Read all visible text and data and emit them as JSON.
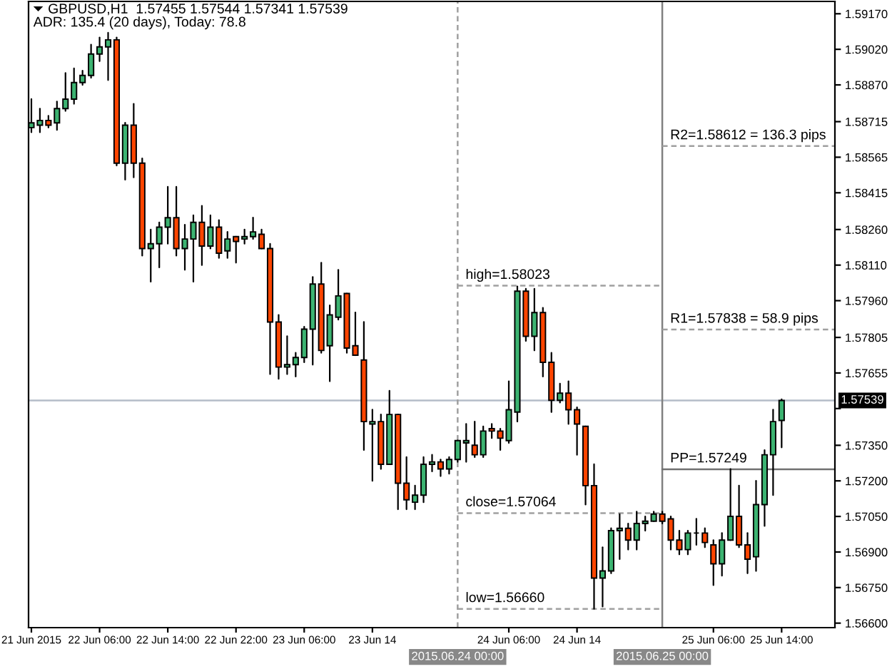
{
  "chart_data": {
    "type": "candlestick",
    "title": "GBPUSD,H1  1.57455 1.57544 1.57341 1.57539",
    "subtitle": "ADR: 135.4 (20 days), Today: 78.8",
    "x": [
      "2015-06-21T22:00",
      "2015-06-21T23:00",
      "2015-06-22T00:00",
      "2015-06-22T01:00",
      "2015-06-22T02:00",
      "2015-06-22T03:00",
      "2015-06-22T04:00",
      "2015-06-22T05:00",
      "2015-06-22T06:00",
      "2015-06-22T07:00",
      "2015-06-22T08:00",
      "2015-06-22T09:00",
      "2015-06-22T10:00",
      "2015-06-22T11:00",
      "2015-06-22T12:00",
      "2015-06-22T13:00",
      "2015-06-22T14:00",
      "2015-06-22T15:00",
      "2015-06-22T16:00",
      "2015-06-22T17:00",
      "2015-06-22T18:00",
      "2015-06-22T19:00",
      "2015-06-22T20:00",
      "2015-06-22T21:00",
      "2015-06-22T22:00",
      "2015-06-22T23:00",
      "2015-06-23T00:00",
      "2015-06-23T01:00",
      "2015-06-23T02:00",
      "2015-06-23T03:00",
      "2015-06-23T04:00",
      "2015-06-23T05:00",
      "2015-06-23T06:00",
      "2015-06-23T07:00",
      "2015-06-23T08:00",
      "2015-06-23T09:00",
      "2015-06-23T10:00",
      "2015-06-23T11:00",
      "2015-06-23T12:00",
      "2015-06-23T13:00",
      "2015-06-23T14:00",
      "2015-06-23T15:00",
      "2015-06-23T16:00",
      "2015-06-23T17:00",
      "2015-06-23T18:00",
      "2015-06-23T19:00",
      "2015-06-23T20:00",
      "2015-06-23T21:00",
      "2015-06-23T22:00",
      "2015-06-23T23:00",
      "2015-06-24T00:00",
      "2015-06-24T01:00",
      "2015-06-24T02:00",
      "2015-06-24T03:00",
      "2015-06-24T04:00",
      "2015-06-24T05:00",
      "2015-06-24T06:00",
      "2015-06-24T07:00",
      "2015-06-24T08:00",
      "2015-06-24T09:00",
      "2015-06-24T10:00",
      "2015-06-24T11:00",
      "2015-06-24T12:00",
      "2015-06-24T13:00",
      "2015-06-24T14:00",
      "2015-06-24T15:00",
      "2015-06-24T16:00",
      "2015-06-24T17:00",
      "2015-06-24T18:00",
      "2015-06-24T19:00",
      "2015-06-24T20:00",
      "2015-06-24T21:00",
      "2015-06-24T22:00",
      "2015-06-24T23:00",
      "2015-06-25T00:00",
      "2015-06-25T01:00",
      "2015-06-25T02:00",
      "2015-06-25T03:00",
      "2015-06-25T04:00",
      "2015-06-25T05:00",
      "2015-06-25T06:00",
      "2015-06-25T07:00",
      "2015-06-25T08:00",
      "2015-06-25T09:00",
      "2015-06-25T10:00",
      "2015-06-25T11:00",
      "2015-06-25T12:00",
      "2015-06-25T13:00",
      "2015-06-25T14:00"
    ],
    "ohlc": [
      [
        1.5869,
        1.5881,
        1.5867,
        1.5871
      ],
      [
        1.587,
        1.5877,
        1.5867,
        1.5872
      ],
      [
        1.5872,
        1.5874,
        1.5869,
        1.587
      ],
      [
        1.5871,
        1.588,
        1.5868,
        1.5877
      ],
      [
        1.5877,
        1.5892,
        1.5876,
        1.5881
      ],
      [
        1.5881,
        1.5894,
        1.5879,
        1.5888
      ],
      [
        1.5888,
        1.5893,
        1.5887,
        1.5891
      ],
      [
        1.5891,
        1.5904,
        1.589,
        1.59
      ],
      [
        1.59,
        1.5907,
        1.5897,
        1.5903
      ],
      [
        1.5903,
        1.5909,
        1.5889,
        1.5906
      ],
      [
        1.5906,
        1.5907,
        1.5853,
        1.5854
      ],
      [
        1.5854,
        1.5871,
        1.5847,
        1.587
      ],
      [
        1.587,
        1.5879,
        1.5848,
        1.5854
      ],
      [
        1.5854,
        1.5856,
        1.5815,
        1.5818
      ],
      [
        1.5818,
        1.5826,
        1.5804,
        1.582
      ],
      [
        1.582,
        1.5829,
        1.581,
        1.5827
      ],
      [
        1.5827,
        1.5844,
        1.582,
        1.5831
      ],
      [
        1.5831,
        1.5844,
        1.5815,
        1.5818
      ],
      [
        1.5818,
        1.5828,
        1.5809,
        1.5822
      ],
      [
        1.5822,
        1.5832,
        1.5804,
        1.5829
      ],
      [
        1.5829,
        1.5836,
        1.5811,
        1.5819
      ],
      [
        1.5819,
        1.5832,
        1.5818,
        1.5827
      ],
      [
        1.5827,
        1.583,
        1.5814,
        1.5816
      ],
      [
        1.5817,
        1.5825,
        1.5814,
        1.5822
      ],
      [
        1.5823,
        1.5823,
        1.5812,
        1.5821
      ],
      [
        1.5822,
        1.5826,
        1.582,
        1.5823
      ],
      [
        1.5823,
        1.5831,
        1.5822,
        1.5825
      ],
      [
        1.5824,
        1.5826,
        1.5818,
        1.5818
      ],
      [
        1.5818,
        1.582,
        1.5765,
        1.5787
      ],
      [
        1.5787,
        1.579,
        1.5763,
        1.5768
      ],
      [
        1.5768,
        1.5781,
        1.5765,
        1.5769
      ],
      [
        1.5769,
        1.5774,
        1.5764,
        1.5772
      ],
      [
        1.5772,
        1.5785,
        1.577,
        1.5784
      ],
      [
        1.5784,
        1.5806,
        1.5769,
        1.5803
      ],
      [
        1.5803,
        1.5812,
        1.5774,
        1.5775
      ],
      [
        1.5777,
        1.5794,
        1.5762,
        1.579
      ],
      [
        1.5789,
        1.5809,
        1.5788,
        1.5798
      ],
      [
        1.5799,
        1.5799,
        1.5774,
        1.5776
      ],
      [
        1.5777,
        1.5791,
        1.5773,
        1.5773
      ],
      [
        1.5771,
        1.5787,
        1.5733,
        1.5745
      ],
      [
        1.5744,
        1.575,
        1.572,
        1.5745
      ],
      [
        1.5745,
        1.5748,
        1.5725,
        1.5727
      ],
      [
        1.5727,
        1.5758,
        1.5727,
        1.5748
      ],
      [
        1.5748,
        1.5748,
        1.5708,
        1.5719
      ],
      [
        1.5719,
        1.573,
        1.5708,
        1.5712
      ],
      [
        1.5711,
        1.5718,
        1.5708,
        1.5714
      ],
      [
        1.5714,
        1.573,
        1.5711,
        1.5727
      ],
      [
        1.5727,
        1.5731,
        1.5724,
        1.5728
      ],
      [
        1.5728,
        1.5729,
        1.5722,
        1.5725
      ],
      [
        1.5725,
        1.573,
        1.5723,
        1.5729
      ],
      [
        1.5729,
        1.5737,
        1.5728,
        1.5737
      ],
      [
        1.5736,
        1.5744,
        1.5728,
        1.5737
      ],
      [
        1.5735,
        1.5745,
        1.573,
        1.5731
      ],
      [
        1.5731,
        1.5743,
        1.573,
        1.5741
      ],
      [
        1.5742,
        1.5744,
        1.5738,
        1.5741
      ],
      [
        1.5741,
        1.5742,
        1.5733,
        1.5738
      ],
      [
        1.5737,
        1.5762,
        1.5736,
        1.575
      ],
      [
        1.5749,
        1.5802,
        1.5745,
        1.58
      ],
      [
        1.58,
        1.5801,
        1.5779,
        1.5781
      ],
      [
        1.5781,
        1.5801,
        1.5775,
        1.5791
      ],
      [
        1.5791,
        1.5793,
        1.5764,
        1.577
      ],
      [
        1.577,
        1.5774,
        1.5749,
        1.5754
      ],
      [
        1.5754,
        1.5761,
        1.5753,
        1.5757
      ],
      [
        1.5757,
        1.5762,
        1.5744,
        1.575
      ],
      [
        1.575,
        1.5751,
        1.5731,
        1.5744
      ],
      [
        1.5743,
        1.5743,
        1.571,
        1.5718
      ],
      [
        1.5718,
        1.5727,
        1.5666,
        1.5679
      ],
      [
        1.5679,
        1.5692,
        1.5667,
        1.5682
      ],
      [
        1.5682,
        1.57,
        1.5681,
        1.5699
      ],
      [
        1.5699,
        1.5706,
        1.5687,
        1.57
      ],
      [
        1.57,
        1.5702,
        1.5691,
        1.5695
      ],
      [
        1.5695,
        1.5707,
        1.5691,
        1.5702
      ],
      [
        1.5702,
        1.5705,
        1.5699,
        1.5703
      ],
      [
        1.5703,
        1.5707,
        1.5703,
        1.5706
      ],
      [
        1.5706,
        1.5707,
        1.5702,
        1.5703
      ],
      [
        1.5704,
        1.5705,
        1.5691,
        1.5695
      ],
      [
        1.5695,
        1.5699,
        1.5689,
        1.5691
      ],
      [
        1.5691,
        1.5699,
        1.5689,
        1.5698
      ],
      [
        1.5698,
        1.5704,
        1.5693,
        1.5698
      ],
      [
        1.5698,
        1.57,
        1.5692,
        1.5694
      ],
      [
        1.5693,
        1.5695,
        1.5676,
        1.5685
      ],
      [
        1.5685,
        1.5698,
        1.568,
        1.5695
      ],
      [
        1.5695,
        1.5725,
        1.5695,
        1.5705
      ],
      [
        1.5705,
        1.5718,
        1.5692,
        1.5693
      ],
      [
        1.5693,
        1.5698,
        1.5681,
        1.5687
      ],
      [
        1.5688,
        1.572,
        1.5682,
        1.571
      ],
      [
        1.571,
        1.5733,
        1.5701,
        1.5731
      ],
      [
        1.5731,
        1.575,
        1.5714,
        1.5745
      ],
      [
        1.57455,
        1.57544,
        1.57341,
        1.57539
      ]
    ],
    "colors": [
      "#3cb371",
      "#3cb371",
      "#ff4500",
      "#3cb371",
      "#3cb371",
      "#3cb371",
      "#3cb371",
      "#3cb371",
      "#3cb371",
      "#3cb371",
      "#ff4500",
      "#3cb371",
      "#ff4500",
      "#ff4500",
      "#3cb371",
      "#3cb371",
      "#3cb371",
      "#ff4500",
      "#3cb371",
      "#3cb371",
      "#ff4500",
      "#3cb371",
      "#ff4500",
      "#3cb371",
      "#ff4500",
      "#3cb371",
      "#3cb371",
      "#ff4500",
      "#ff4500",
      "#ff4500",
      "#3cb371",
      "#3cb371",
      "#3cb371",
      "#3cb371",
      "#ff4500",
      "#3cb371",
      "#3cb371",
      "#ff4500",
      "#ff4500",
      "#ff4500",
      "#3cb371",
      "#ff4500",
      "#3cb371",
      "#ff4500",
      "#ff4500",
      "#3cb371",
      "#3cb371",
      "#3cb371",
      "#ff4500",
      "#3cb371",
      "#3cb371",
      "#3cb371",
      "#ff4500",
      "#3cb371",
      "#ff4500",
      "#ff4500",
      "#3cb371",
      "#3cb371",
      "#ff4500",
      "#3cb371",
      "#ff4500",
      "#ff4500",
      "#3cb371",
      "#ff4500",
      "#ff4500",
      "#ff4500",
      "#ff4500",
      "#3cb371",
      "#3cb371",
      "#3cb371",
      "#ff4500",
      "#3cb371",
      "#3cb371",
      "#3cb371",
      "#ff4500",
      "#ff4500",
      "#ff4500",
      "#3cb371",
      "#000000",
      "#ff4500",
      "#ff4500",
      "#3cb371",
      "#3cb371",
      "#ff4500",
      "#ff4500",
      "#3cb371",
      "#3cb371",
      "#3cb371",
      "#3cb371"
    ],
    "series": [
      {
        "type": "line",
        "name": "high=1.58023",
        "x": [
          "2015-06-24T00:00",
          "2015-06-25T00:00"
        ],
        "values": [
          1.58023,
          1.58023
        ],
        "color": "#a0a0a0",
        "line_style": "dashed"
      },
      {
        "type": "line",
        "name": "close=1.57064",
        "x": [
          "2015-06-24T00:00",
          "2015-06-25T00:00"
        ],
        "values": [
          1.57064,
          1.57064
        ],
        "color": "#a0a0a0",
        "line_style": "dashed"
      },
      {
        "type": "line",
        "name": "low=1.56660",
        "x": [
          "2015-06-24T00:00",
          "2015-06-25T00:00"
        ],
        "values": [
          1.5666,
          1.5666
        ],
        "color": "#a0a0a0",
        "line_style": "dashed"
      },
      {
        "type": "line",
        "name": "R2=1.58612 = 136.3 pips",
        "x": [
          "2015-06-25T00:00",
          "2015-06-25T20:15"
        ],
        "values": [
          1.58612,
          1.58612
        ],
        "color": "#a0a0a0",
        "line_style": "dashed"
      },
      {
        "type": "line",
        "name": "R1=1.57838 = 58.9 pips",
        "x": [
          "2015-06-25T00:00",
          "2015-06-25T20:15"
        ],
        "values": [
          1.57838,
          1.57838
        ],
        "color": "#a0a0a0",
        "line_style": "dashed"
      },
      {
        "type": "line",
        "name": "PP=1.57249",
        "x": [
          "2015-06-25T00:00",
          "2015-06-25T20:15"
        ],
        "values": [
          1.57249,
          1.57249
        ],
        "color": "#707070",
        "line_style": "solid"
      }
    ],
    "ref_lines": [
      {
        "axis": "y",
        "value": 1.57539,
        "label": "1.57539",
        "color": "#b4bcc8",
        "line_style": "solid"
      },
      {
        "axis": "x",
        "value": "2015-06-24T00:00",
        "label": "2015.06.24 00:00",
        "color": "#a0a0a0",
        "line_style": "dashed"
      },
      {
        "axis": "x",
        "value": "2015-06-25T00:00",
        "label": "2015.06.25 00:00",
        "color": "#808080",
        "line_style": "solid"
      }
    ],
    "xlim": [
      "2015-06-21T21:40",
      "2015-06-25T20:15"
    ],
    "xticks": [
      {
        "value": "2015-06-21T22:00",
        "label": "21 Jun 2015"
      },
      {
        "value": "2015-06-22T06:00",
        "label": "22 Jun 06:00"
      },
      {
        "value": "2015-06-22T14:00",
        "label": "22 Jun 14:00"
      },
      {
        "value": "2015-06-22T22:00",
        "label": "22 Jun 22:00"
      },
      {
        "value": "2015-06-23T06:00",
        "label": "23 Jun 06:00"
      },
      {
        "value": "2015-06-23T14:00",
        "label": "23 Jun 14"
      },
      {
        "value": "2015-06-24T06:00",
        "label": "24 Jun 06:00"
      },
      {
        "value": "2015-06-24T14:00",
        "label": "24 Jun 14"
      },
      {
        "value": "2015-06-25T06:00",
        "label": "25 Jun 06:00"
      },
      {
        "value": "2015-06-25T14:00",
        "label": "25 Jun 14:00"
      }
    ],
    "ylim": [
      1.56581,
      1.59222
    ],
    "yticks": [
      {
        "value": 1.5917,
        "label": "1.59170"
      },
      {
        "value": 1.5902,
        "label": "1.59020"
      },
      {
        "value": 1.5887,
        "label": "1.58870"
      },
      1.58715,
      1.58565,
      1.58415,
      {
        "value": 1.5826,
        "label": "1.58260"
      },
      {
        "value": 1.5811,
        "label": "1.58110"
      },
      {
        "value": 1.5796,
        "label": "1.57960"
      },
      1.57805,
      1.57655,
      {
        "value": 1.57505,
        "label": null
      },
      {
        "value": 1.5735,
        "label": "1.57350"
      },
      {
        "value": 1.572,
        "label": "1.57200"
      },
      {
        "value": 1.5705,
        "label": "1.57050"
      },
      {
        "value": 1.569,
        "label": "1.56900"
      },
      {
        "value": 1.5675,
        "label": "1.56750"
      },
      {
        "value": 1.566,
        "label": "1.56600"
      }
    ]
  }
}
